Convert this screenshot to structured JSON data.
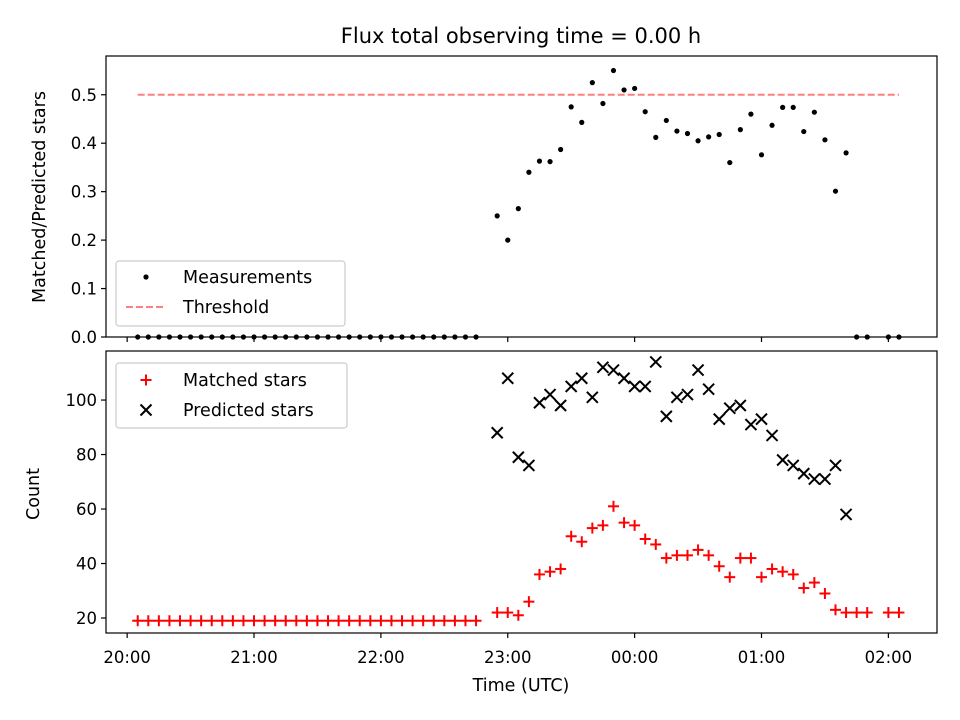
{
  "chart_data": [
    {
      "type": "scatter",
      "title": "Flux total observing time = 0.00 h",
      "xlabel": "",
      "ylabel": "Matched/Predicted stars",
      "ylim": [
        0,
        0.58
      ],
      "yticks": [
        0.0,
        0.1,
        0.2,
        0.3,
        0.4,
        0.5
      ],
      "ytick_labels": [
        "0.0",
        "0.1",
        "0.2",
        "0.3",
        "0.4",
        "0.5"
      ],
      "legend": {
        "position": "lower-left",
        "entries": [
          "Measurements",
          "Threshold"
        ]
      },
      "threshold": {
        "name": "Threshold",
        "value": 0.5,
        "x_start": "20:05",
        "x_end": "02:05",
        "color": "#ff7f7f"
      },
      "series": [
        {
          "name": "Measurements",
          "color": "#000000",
          "points": [
            [
              "20:05",
              0
            ],
            [
              "20:10",
              0
            ],
            [
              "20:15",
              0
            ],
            [
              "20:20",
              0
            ],
            [
              "20:25",
              0
            ],
            [
              "20:30",
              0
            ],
            [
              "20:35",
              0
            ],
            [
              "20:40",
              0
            ],
            [
              "20:45",
              0
            ],
            [
              "20:50",
              0
            ],
            [
              "20:55",
              0
            ],
            [
              "21:00",
              0
            ],
            [
              "21:05",
              0
            ],
            [
              "21:10",
              0
            ],
            [
              "21:15",
              0
            ],
            [
              "21:20",
              0
            ],
            [
              "21:25",
              0
            ],
            [
              "21:30",
              0
            ],
            [
              "21:35",
              0
            ],
            [
              "21:40",
              0
            ],
            [
              "21:45",
              0
            ],
            [
              "21:50",
              0
            ],
            [
              "21:55",
              0
            ],
            [
              "22:00",
              0
            ],
            [
              "22:05",
              0
            ],
            [
              "22:10",
              0
            ],
            [
              "22:15",
              0
            ],
            [
              "22:20",
              0
            ],
            [
              "22:25",
              0
            ],
            [
              "22:30",
              0
            ],
            [
              "22:35",
              0
            ],
            [
              "22:40",
              0
            ],
            [
              "22:45",
              0
            ],
            [
              "22:55",
              0.25
            ],
            [
              "23:00",
              0.2
            ],
            [
              "23:05",
              0.265
            ],
            [
              "23:10",
              0.34
            ],
            [
              "23:15",
              0.363
            ],
            [
              "23:20",
              0.362
            ],
            [
              "23:25",
              0.387
            ],
            [
              "23:30",
              0.475
            ],
            [
              "23:35",
              0.443
            ],
            [
              "23:40",
              0.525
            ],
            [
              "23:45",
              0.482
            ],
            [
              "23:50",
              0.55
            ],
            [
              "23:55",
              0.51
            ],
            [
              "00:00",
              0.513
            ],
            [
              "00:05",
              0.465
            ],
            [
              "00:10",
              0.412
            ],
            [
              "00:15",
              0.447
            ],
            [
              "00:20",
              0.425
            ],
            [
              "00:25",
              0.42
            ],
            [
              "00:30",
              0.405
            ],
            [
              "00:35",
              0.413
            ],
            [
              "00:40",
              0.418
            ],
            [
              "00:45",
              0.36
            ],
            [
              "00:50",
              0.428
            ],
            [
              "00:55",
              0.46
            ],
            [
              "01:00",
              0.376
            ],
            [
              "01:05",
              0.437
            ],
            [
              "01:10",
              0.474
            ],
            [
              "01:15",
              0.474
            ],
            [
              "01:20",
              0.424
            ],
            [
              "01:25",
              0.464
            ],
            [
              "01:30",
              0.407
            ],
            [
              "01:35",
              0.301
            ],
            [
              "01:40",
              0.38
            ],
            [
              "01:45",
              0
            ],
            [
              "01:50",
              0
            ],
            [
              "02:00",
              0
            ],
            [
              "02:05",
              0
            ]
          ]
        }
      ]
    },
    {
      "type": "scatter",
      "title": "",
      "xlabel": "Time (UTC)",
      "ylabel": "Count",
      "ylim": [
        14.5,
        118
      ],
      "yticks": [
        20,
        40,
        60,
        80,
        100
      ],
      "ytick_labels": [
        "20",
        "40",
        "60",
        "80",
        "100"
      ],
      "xticks": [
        "20:00",
        "21:00",
        "22:00",
        "23:00",
        "00:00",
        "01:00",
        "02:00"
      ],
      "xlim": [
        "19:50",
        "02:23"
      ],
      "legend": {
        "position": "upper-left",
        "entries": [
          "Matched stars",
          "Predicted stars"
        ]
      },
      "series": [
        {
          "name": "Matched stars",
          "marker": "plus",
          "color": "#ff0000",
          "points": [
            [
              "20:05",
              19
            ],
            [
              "20:10",
              19
            ],
            [
              "20:15",
              19
            ],
            [
              "20:20",
              19
            ],
            [
              "20:25",
              19
            ],
            [
              "20:30",
              19
            ],
            [
              "20:35",
              19
            ],
            [
              "20:40",
              19
            ],
            [
              "20:45",
              19
            ],
            [
              "20:50",
              19
            ],
            [
              "20:55",
              19
            ],
            [
              "21:00",
              19
            ],
            [
              "21:05",
              19
            ],
            [
              "21:10",
              19
            ],
            [
              "21:15",
              19
            ],
            [
              "21:20",
              19
            ],
            [
              "21:25",
              19
            ],
            [
              "21:30",
              19
            ],
            [
              "21:35",
              19
            ],
            [
              "21:40",
              19
            ],
            [
              "21:45",
              19
            ],
            [
              "21:50",
              19
            ],
            [
              "21:55",
              19
            ],
            [
              "22:00",
              19
            ],
            [
              "22:05",
              19
            ],
            [
              "22:10",
              19
            ],
            [
              "22:15",
              19
            ],
            [
              "22:20",
              19
            ],
            [
              "22:25",
              19
            ],
            [
              "22:30",
              19
            ],
            [
              "22:35",
              19
            ],
            [
              "22:40",
              19
            ],
            [
              "22:45",
              19
            ],
            [
              "22:55",
              22
            ],
            [
              "23:00",
              22
            ],
            [
              "23:05",
              21
            ],
            [
              "23:10",
              26
            ],
            [
              "23:15",
              36
            ],
            [
              "23:20",
              37
            ],
            [
              "23:25",
              38
            ],
            [
              "23:30",
              50
            ],
            [
              "23:35",
              48
            ],
            [
              "23:40",
              53
            ],
            [
              "23:45",
              54
            ],
            [
              "23:50",
              61
            ],
            [
              "23:55",
              55
            ],
            [
              "00:00",
              54
            ],
            [
              "00:05",
              49
            ],
            [
              "00:10",
              47
            ],
            [
              "00:15",
              42
            ],
            [
              "00:20",
              43
            ],
            [
              "00:25",
              43
            ],
            [
              "00:30",
              45
            ],
            [
              "00:35",
              43
            ],
            [
              "00:40",
              39
            ],
            [
              "00:45",
              35
            ],
            [
              "00:50",
              42
            ],
            [
              "00:55",
              42
            ],
            [
              "01:00",
              35
            ],
            [
              "01:05",
              38
            ],
            [
              "01:10",
              37
            ],
            [
              "01:15",
              36
            ],
            [
              "01:20",
              31
            ],
            [
              "01:25",
              33
            ],
            [
              "01:30",
              29
            ],
            [
              "01:35",
              23
            ],
            [
              "01:40",
              22
            ],
            [
              "01:45",
              22
            ],
            [
              "01:50",
              22
            ],
            [
              "02:00",
              22
            ],
            [
              "02:05",
              22
            ]
          ]
        },
        {
          "name": "Predicted stars",
          "marker": "x",
          "color": "#000000",
          "points": [
            [
              "22:55",
              88
            ],
            [
              "23:00",
              108
            ],
            [
              "23:05",
              79
            ],
            [
              "23:10",
              76
            ],
            [
              "23:15",
              99
            ],
            [
              "23:20",
              102
            ],
            [
              "23:25",
              98
            ],
            [
              "23:30",
              105
            ],
            [
              "23:35",
              108
            ],
            [
              "23:40",
              101
            ],
            [
              "23:45",
              112
            ],
            [
              "23:50",
              111
            ],
            [
              "23:55",
              108
            ],
            [
              "00:00",
              105
            ],
            [
              "00:05",
              105
            ],
            [
              "00:10",
              114
            ],
            [
              "00:15",
              94
            ],
            [
              "00:20",
              101
            ],
            [
              "00:25",
              102
            ],
            [
              "00:30",
              111
            ],
            [
              "00:35",
              104
            ],
            [
              "00:40",
              93
            ],
            [
              "00:45",
              97
            ],
            [
              "00:50",
              98
            ],
            [
              "00:55",
              91
            ],
            [
              "01:00",
              93
            ],
            [
              "01:05",
              87
            ],
            [
              "01:10",
              78
            ],
            [
              "01:15",
              76
            ],
            [
              "01:20",
              73
            ],
            [
              "01:25",
              71
            ],
            [
              "01:30",
              71
            ],
            [
              "01:35",
              76
            ],
            [
              "01:40",
              58
            ]
          ]
        }
      ]
    }
  ]
}
